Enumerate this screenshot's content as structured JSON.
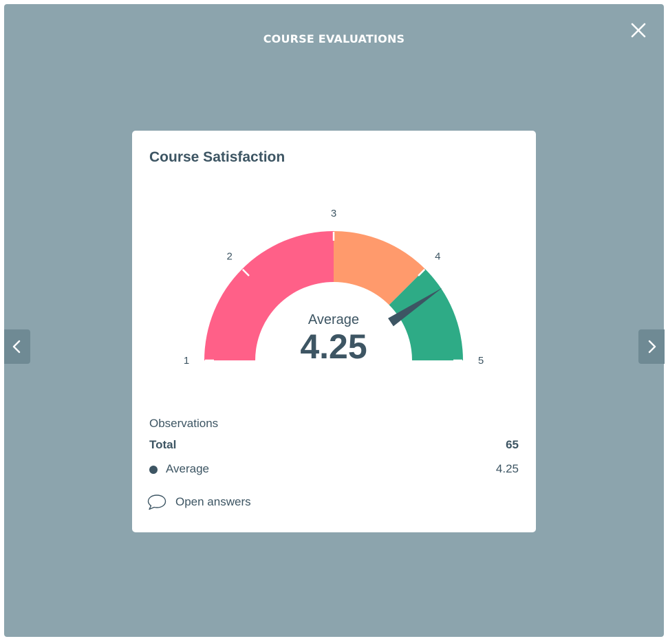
{
  "modal": {
    "title": "COURSE EVALUATIONS",
    "close_icon": "close-icon",
    "prev_icon": "chevron-left-icon",
    "next_icon": "chevron-right-icon",
    "background_color": "#8ca4ad"
  },
  "card": {
    "title": "Course Satisfaction",
    "gauge": {
      "center_label": "Average",
      "value_text": "4.25",
      "tick_labels": [
        "1",
        "2",
        "3",
        "4",
        "5"
      ]
    },
    "observations": {
      "label": "Observations",
      "total_label": "Total",
      "total_value": "65",
      "average_label": "Average",
      "average_value": "4.25"
    },
    "open_answers": {
      "label": "Open answers",
      "icon": "speech-bubble-icon"
    }
  },
  "chart_data": {
    "type": "gauge",
    "min": 1,
    "max": 5,
    "value": 4.25,
    "bands": [
      {
        "from": 1,
        "to": 3,
        "color": "#ff6088"
      },
      {
        "from": 3,
        "to": 4,
        "color": "#ff9a6c"
      },
      {
        "from": 4,
        "to": 5,
        "color": "#2eab86"
      }
    ],
    "ticks": [
      1,
      2,
      3,
      4,
      5
    ],
    "needle_color": "#3d5563"
  }
}
